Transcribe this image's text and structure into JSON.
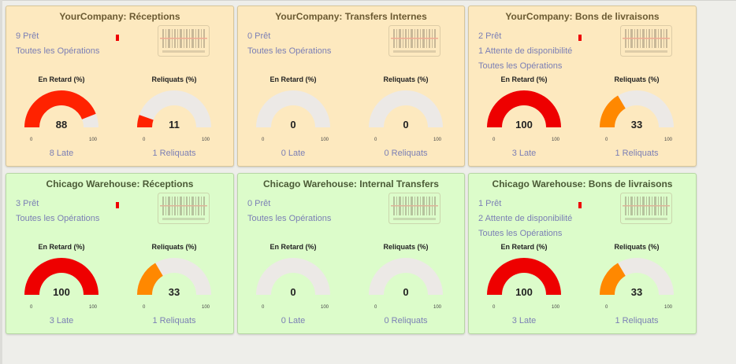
{
  "colors": {
    "orange_card_bg": "#fde9bf",
    "green_card_bg": "#dcfcca",
    "gauge_track": "#ece9e6",
    "link": "#7b7fb5",
    "late_red": "#ee0000",
    "backorder_orange": "#ff8800"
  },
  "gauge_labels": {
    "late": "En Retard (%)",
    "backorders": "Reliquats (%)",
    "min": "0",
    "max": "100"
  },
  "cards": [
    {
      "title": "YourCompany: Réceptions",
      "links": [
        "9 Prêt",
        "Toutes les Opérations"
      ],
      "late": {
        "value": 88,
        "display": "88",
        "color": "#ff2200"
      },
      "backorders": {
        "value": 11,
        "display": "11",
        "color": "#ff2200"
      },
      "late_link": "8 Late",
      "backorders_link": "1 Reliquats",
      "red_marker": true
    },
    {
      "title": "YourCompany: Transfers Internes",
      "links": [
        "0 Prêt",
        "Toutes les Opérations"
      ],
      "late": {
        "value": 0,
        "display": "0",
        "color": "#ee0000"
      },
      "backorders": {
        "value": 0,
        "display": "0",
        "color": "#ee0000"
      },
      "late_link": "0 Late",
      "backorders_link": "0 Reliquats",
      "red_marker": false
    },
    {
      "title": "YourCompany: Bons de livraisons",
      "links": [
        "2 Prêt",
        "1 Attente de disponibilité",
        "Toutes les Opérations"
      ],
      "late": {
        "value": 100,
        "display": "100",
        "color": "#ee0000"
      },
      "backorders": {
        "value": 33,
        "display": "33",
        "color": "#ff8800"
      },
      "late_link": "3 Late",
      "backorders_link": "1 Reliquats",
      "red_marker": true
    },
    {
      "title": "Chicago Warehouse: Réceptions",
      "links": [
        "3 Prêt",
        "Toutes les Opérations"
      ],
      "late": {
        "value": 100,
        "display": "100",
        "color": "#ee0000"
      },
      "backorders": {
        "value": 33,
        "display": "33",
        "color": "#ff8800"
      },
      "late_link": "3 Late",
      "backorders_link": "1 Reliquats",
      "red_marker": true
    },
    {
      "title": "Chicago Warehouse: Internal Transfers",
      "links": [
        "0 Prêt",
        "Toutes les Opérations"
      ],
      "late": {
        "value": 0,
        "display": "0",
        "color": "#ee0000"
      },
      "backorders": {
        "value": 0,
        "display": "0",
        "color": "#ee0000"
      },
      "late_link": "0 Late",
      "backorders_link": "0 Reliquats",
      "red_marker": false
    },
    {
      "title": "Chicago Warehouse: Bons de livraisons",
      "links": [
        "1 Prêt",
        "2 Attente de disponibilité",
        "Toutes les Opérations"
      ],
      "late": {
        "value": 100,
        "display": "100",
        "color": "#ee0000"
      },
      "backorders": {
        "value": 33,
        "display": "33",
        "color": "#ff8800"
      },
      "late_link": "3 Late",
      "backorders_link": "1 Reliquats",
      "red_marker": true
    }
  ]
}
